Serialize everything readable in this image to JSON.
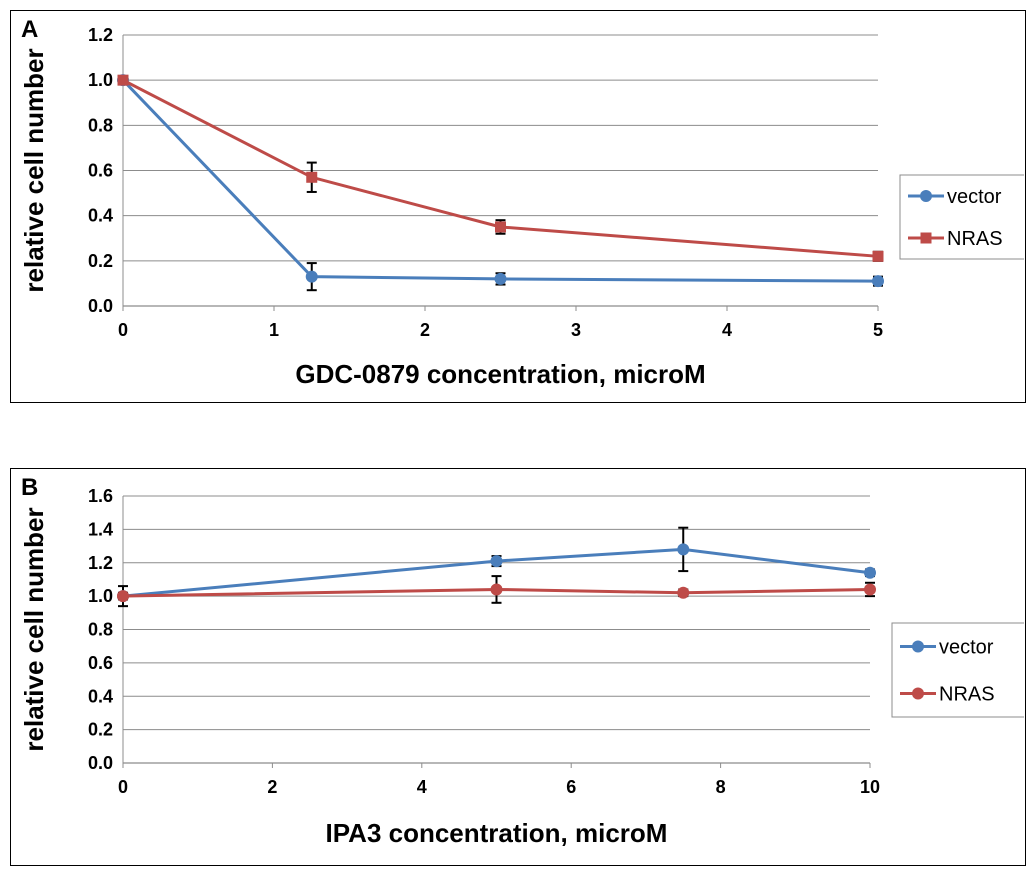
{
  "chart_data": [
    {
      "panel_letter": "A",
      "type": "line",
      "xlabel": "GDC-0879 concentration, microM",
      "ylabel": "relative cell number",
      "xlim": [
        0,
        5
      ],
      "ylim": [
        0,
        1.2
      ],
      "x_ticks": [
        "0",
        "1",
        "2",
        "3",
        "4",
        "5"
      ],
      "y_ticks": [
        "0.0",
        "0.2",
        "0.4",
        "0.6",
        "0.8",
        "1.0",
        "1.2"
      ],
      "grid": "horizontal",
      "legend_placement": "right",
      "series": [
        {
          "name": "vector",
          "color": "#4a7ebb",
          "marker": "circle",
          "x": [
            0,
            1.25,
            2.5,
            5
          ],
          "y": [
            1.0,
            0.13,
            0.12,
            0.11
          ],
          "err": [
            0.01,
            0.06,
            0.025,
            0.02
          ]
        },
        {
          "name": "NRAS",
          "color": "#be4b48",
          "marker": "square",
          "x": [
            0,
            1.25,
            2.5,
            5
          ],
          "y": [
            1.0,
            0.57,
            0.35,
            0.22
          ],
          "err": [
            0.01,
            0.065,
            0.03,
            0.02
          ]
        }
      ]
    },
    {
      "panel_letter": "B",
      "type": "line",
      "xlabel": "IPA3 concentration, microM",
      "ylabel": "relative cell number",
      "xlim": [
        0,
        10
      ],
      "ylim": [
        0,
        1.6
      ],
      "x_ticks": [
        "0",
        "2",
        "4",
        "6",
        "8",
        "10"
      ],
      "y_ticks": [
        "0.0",
        "0.2",
        "0.4",
        "0.6",
        "0.8",
        "1.0",
        "1.2",
        "1.4",
        "1.6"
      ],
      "grid": "horizontal",
      "legend_placement": "right",
      "series": [
        {
          "name": "vector",
          "color": "#4a7ebb",
          "marker": "circle",
          "x": [
            0,
            5,
            7.5,
            10
          ],
          "y": [
            1.0,
            1.21,
            1.28,
            1.14
          ],
          "err": [
            0.06,
            0.03,
            0.13,
            0.02
          ]
        },
        {
          "name": "NRAS",
          "color": "#be4b48",
          "marker": "circle",
          "x": [
            0,
            5,
            7.5,
            10
          ],
          "y": [
            1.0,
            1.04,
            1.02,
            1.04
          ],
          "err": [
            0.02,
            0.08,
            0.02,
            0.04
          ]
        }
      ]
    }
  ]
}
